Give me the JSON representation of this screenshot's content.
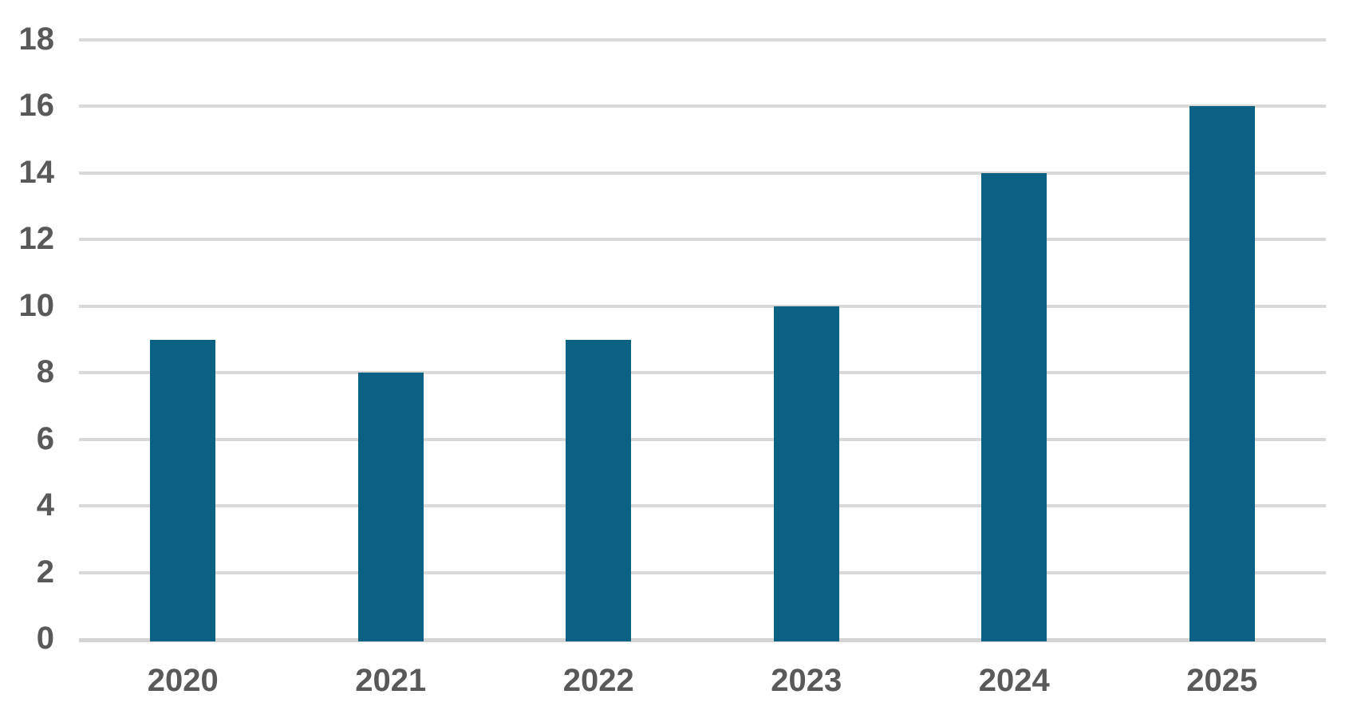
{
  "chart_data": {
    "type": "bar",
    "categories": [
      "2020",
      "2021",
      "2022",
      "2023",
      "2024",
      "2025"
    ],
    "values": [
      9,
      8,
      9,
      10,
      14,
      16
    ],
    "title": "",
    "xlabel": "",
    "ylabel": "",
    "ylim": [
      0,
      18
    ],
    "yticks": [
      0,
      2,
      4,
      6,
      8,
      10,
      12,
      14,
      16,
      18
    ],
    "grid": true,
    "legend": false,
    "colors": {
      "bar": "#0A6183",
      "gridline": "#D9D9D9",
      "baseline": "#D3D3D3",
      "axis_text": "#595959",
      "background": "#FFFFFF"
    }
  }
}
